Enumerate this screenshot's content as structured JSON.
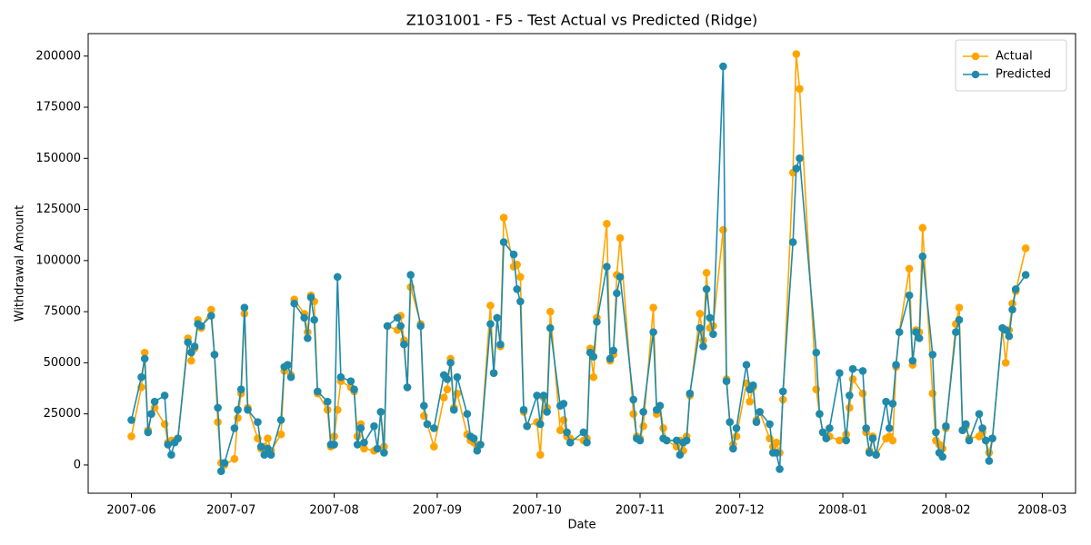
{
  "chart_data": {
    "type": "line",
    "title": "Z1031001 - F5 - Test Actual vs Predicted (Ridge)",
    "xlabel": "Date",
    "ylabel": "Withdrawal Amount",
    "legend": "upper right",
    "grid": false,
    "x": [
      "2007-06-01",
      "2007-06-04",
      "2007-06-05",
      "2007-06-06",
      "2007-06-07",
      "2007-06-08",
      "2007-06-11",
      "2007-06-12",
      "2007-06-13",
      "2007-06-14",
      "2007-06-15",
      "2007-06-18",
      "2007-06-19",
      "2007-06-20",
      "2007-06-21",
      "2007-06-22",
      "2007-06-25",
      "2007-06-26",
      "2007-06-27",
      "2007-06-28",
      "2007-06-29",
      "2007-07-02",
      "2007-07-03",
      "2007-07-04",
      "2007-07-05",
      "2007-07-06",
      "2007-07-09",
      "2007-07-10",
      "2007-07-11",
      "2007-07-12",
      "2007-07-13",
      "2007-07-16",
      "2007-07-17",
      "2007-07-18",
      "2007-07-19",
      "2007-07-20",
      "2007-07-23",
      "2007-07-24",
      "2007-07-25",
      "2007-07-26",
      "2007-07-27",
      "2007-07-30",
      "2007-07-31",
      "2007-08-01",
      "2007-08-02",
      "2007-08-03",
      "2007-08-06",
      "2007-08-07",
      "2007-08-08",
      "2007-08-09",
      "2007-08-10",
      "2007-08-13",
      "2007-08-14",
      "2007-08-15",
      "2007-08-16",
      "2007-08-17",
      "2007-08-20",
      "2007-08-21",
      "2007-08-22",
      "2007-08-23",
      "2007-08-24",
      "2007-08-27",
      "2007-08-28",
      "2007-08-29",
      "2007-08-31",
      "2007-09-03",
      "2007-09-04",
      "2007-09-05",
      "2007-09-06",
      "2007-09-07",
      "2007-09-10",
      "2007-09-11",
      "2007-09-12",
      "2007-09-13",
      "2007-09-14",
      "2007-09-17",
      "2007-09-18",
      "2007-09-19",
      "2007-09-20",
      "2007-09-21",
      "2007-09-24",
      "2007-09-25",
      "2007-09-26",
      "2007-09-27",
      "2007-09-28",
      "2007-10-01",
      "2007-10-02",
      "2007-10-03",
      "2007-10-04",
      "2007-10-05",
      "2007-10-08",
      "2007-10-09",
      "2007-10-10",
      "2007-10-11",
      "2007-10-15",
      "2007-10-16",
      "2007-10-17",
      "2007-10-18",
      "2007-10-19",
      "2007-10-22",
      "2007-10-23",
      "2007-10-24",
      "2007-10-25",
      "2007-10-26",
      "2007-10-30",
      "2007-10-31",
      "2007-11-01",
      "2007-11-02",
      "2007-11-05",
      "2007-11-06",
      "2007-11-07",
      "2007-11-08",
      "2007-11-09",
      "2007-11-12",
      "2007-11-13",
      "2007-11-14",
      "2007-11-15",
      "2007-11-16",
      "2007-11-19",
      "2007-11-20",
      "2007-11-21",
      "2007-11-22",
      "2007-11-23",
      "2007-11-26",
      "2007-11-27",
      "2007-11-28",
      "2007-11-29",
      "2007-11-30",
      "2007-12-03",
      "2007-12-04",
      "2007-12-05",
      "2007-12-06",
      "2007-12-07",
      "2007-12-10",
      "2007-12-11",
      "2007-12-12",
      "2007-12-13",
      "2007-12-14",
      "2007-12-17",
      "2007-12-18",
      "2007-12-19",
      "2007-12-24",
      "2007-12-25",
      "2007-12-26",
      "2007-12-27",
      "2007-12-28",
      "2007-12-31",
      "2008-01-02",
      "2008-01-03",
      "2008-01-04",
      "2008-01-07",
      "2008-01-08",
      "2008-01-09",
      "2008-01-10",
      "2008-01-11",
      "2008-01-14",
      "2008-01-15",
      "2008-01-16",
      "2008-01-17",
      "2008-01-18",
      "2008-01-21",
      "2008-01-22",
      "2008-01-23",
      "2008-01-24",
      "2008-01-25",
      "2008-01-28",
      "2008-01-29",
      "2008-01-30",
      "2008-01-31",
      "2008-02-01",
      "2008-02-04",
      "2008-02-05",
      "2008-02-06",
      "2008-02-07",
      "2008-02-08",
      "2008-02-11",
      "2008-02-12",
      "2008-02-13",
      "2008-02-14",
      "2008-02-15",
      "2008-02-18",
      "2008-02-19",
      "2008-02-20",
      "2008-02-21",
      "2008-02-22",
      "2008-02-25"
    ],
    "series": [
      {
        "name": "Actual",
        "color": "#ffa500",
        "values": [
          14000,
          38000,
          55000,
          17000,
          25000,
          28000,
          20000,
          11000,
          12000,
          12000,
          13000,
          62000,
          51000,
          57000,
          71000,
          67000,
          76000,
          54000,
          21000,
          1000,
          0,
          3000,
          23000,
          35000,
          74000,
          28000,
          13000,
          8000,
          9000,
          13000,
          7000,
          15000,
          46000,
          49000,
          44000,
          81000,
          74000,
          65000,
          83000,
          80000,
          35000,
          27000,
          9000,
          14000,
          27000,
          41000,
          38000,
          36000,
          14000,
          20000,
          8000,
          7000,
          8000,
          26000,
          9000,
          68000,
          66000,
          73000,
          61000,
          38000,
          87000,
          69000,
          24000,
          20000,
          9000,
          33000,
          37000,
          52000,
          28000,
          35000,
          15000,
          12000,
          11000,
          9000,
          10000,
          78000,
          45000,
          72000,
          58000,
          121000,
          97000,
          98000,
          92000,
          26000,
          19000,
          21000,
          5000,
          33000,
          28000,
          75000,
          17000,
          22000,
          14000,
          13000,
          12000,
          13000,
          57000,
          43000,
          72000,
          118000,
          51000,
          54000,
          93000,
          111000,
          25000,
          14000,
          13000,
          19000,
          77000,
          25000,
          29000,
          18000,
          12000,
          9000,
          12000,
          7000,
          14000,
          34000,
          74000,
          61000,
          94000,
          67000,
          68000,
          115000,
          42000,
          21000,
          10000,
          14000,
          40000,
          31000,
          38000,
          22000,
          26000,
          13000,
          9000,
          11000,
          6000,
          32000,
          143000,
          201000,
          184000,
          37000,
          25000,
          16000,
          14000,
          14000,
          12000,
          15000,
          28000,
          42000,
          35000,
          16000,
          7000,
          14000,
          5000,
          13000,
          14000,
          12000,
          48000,
          65000,
          96000,
          49000,
          66000,
          65000,
          116000,
          35000,
          12000,
          10000,
          8000,
          18000,
          69000,
          77000,
          17000,
          19000,
          13000,
          14000,
          16000,
          12000,
          6000,
          13000,
          67000,
          50000,
          66000,
          79000,
          85000,
          106000
        ]
      },
      {
        "name": "Predicted",
        "color": "#1f8aab",
        "values": [
          22000,
          43000,
          52000,
          16000,
          25000,
          31000,
          34000,
          10000,
          5000,
          11000,
          13000,
          60000,
          55000,
          58000,
          69000,
          68000,
          73000,
          54000,
          28000,
          -3000,
          1000,
          18000,
          27000,
          37000,
          77000,
          27000,
          21000,
          9000,
          5000,
          8000,
          5000,
          22000,
          48000,
          49000,
          43000,
          79000,
          72000,
          62000,
          82000,
          71000,
          36000,
          31000,
          10000,
          10000,
          92000,
          43000,
          41000,
          37000,
          10000,
          18000,
          11000,
          19000,
          8000,
          26000,
          6000,
          68000,
          72000,
          68000,
          59000,
          38000,
          93000,
          68000,
          29000,
          20000,
          18000,
          44000,
          42000,
          50000,
          27000,
          43000,
          25000,
          14000,
          13000,
          7000,
          10000,
          69000,
          45000,
          72000,
          59000,
          109000,
          103000,
          86000,
          80000,
          27000,
          19000,
          34000,
          20000,
          34000,
          26000,
          67000,
          29000,
          30000,
          16000,
          11000,
          16000,
          11000,
          55000,
          53000,
          70000,
          97000,
          52000,
          56000,
          84000,
          92000,
          32000,
          13000,
          12000,
          26000,
          65000,
          27000,
          29000,
          13000,
          12000,
          12000,
          5000,
          11000,
          12000,
          35000,
          67000,
          58000,
          86000,
          72000,
          64000,
          195000,
          41000,
          21000,
          8000,
          18000,
          49000,
          37000,
          39000,
          21000,
          26000,
          20000,
          6000,
          6000,
          -2000,
          36000,
          109000,
          145000,
          150000,
          55000,
          25000,
          16000,
          13000,
          18000,
          45000,
          12000,
          34000,
          47000,
          46000,
          18000,
          6000,
          13000,
          5000,
          31000,
          18000,
          30000,
          49000,
          65000,
          83000,
          51000,
          65000,
          62000,
          102000,
          54000,
          16000,
          6000,
          4000,
          19000,
          65000,
          71000,
          17000,
          20000,
          12000,
          25000,
          18000,
          12000,
          2000,
          13000,
          67000,
          66000,
          63000,
          76000,
          86000,
          93000
        ]
      }
    ],
    "xlim": [
      "2007-05-19",
      "2008-03-11"
    ],
    "xticks": [
      {
        "value": "2007-06-01",
        "label": "2007-06"
      },
      {
        "value": "2007-07-01",
        "label": "2007-07"
      },
      {
        "value": "2007-08-01",
        "label": "2007-08"
      },
      {
        "value": "2007-09-01",
        "label": "2007-09"
      },
      {
        "value": "2007-10-01",
        "label": "2007-10"
      },
      {
        "value": "2007-11-01",
        "label": "2007-11"
      },
      {
        "value": "2007-12-01",
        "label": "2007-12"
      },
      {
        "value": "2008-01-01",
        "label": "2008-01"
      },
      {
        "value": "2008-02-01",
        "label": "2008-02"
      },
      {
        "value": "2008-03-01",
        "label": "2008-03"
      }
    ],
    "ylim": [
      -13800,
      211000
    ],
    "yticks": [
      0,
      25000,
      50000,
      75000,
      100000,
      125000,
      150000,
      175000,
      200000
    ]
  }
}
